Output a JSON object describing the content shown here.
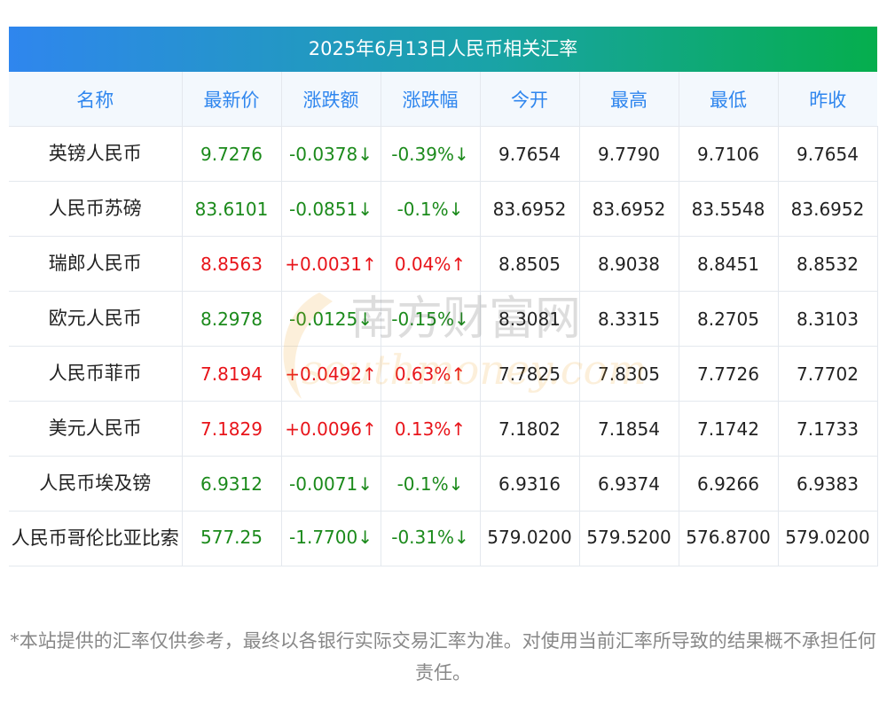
{
  "title": "2025年6月13日人民币相关汇率",
  "headers": [
    "名称",
    "最新价",
    "涨跌额",
    "涨跌幅",
    "今开",
    "最高",
    "最低",
    "昨收"
  ],
  "rows": [
    {
      "name": "英镑人民币",
      "latest": "9.7276",
      "change": "-0.0378↓",
      "pct": "-0.39%↓",
      "open": "9.7654",
      "high": "9.7790",
      "low": "9.7106",
      "prev": "9.7654",
      "trend": "down"
    },
    {
      "name": "人民币苏磅",
      "latest": "83.6101",
      "change": "-0.0851↓",
      "pct": "-0.1%↓",
      "open": "83.6952",
      "high": "83.6952",
      "low": "83.5548",
      "prev": "83.6952",
      "trend": "down"
    },
    {
      "name": "瑞郎人民币",
      "latest": "8.8563",
      "change": "+0.0031↑",
      "pct": "0.04%↑",
      "open": "8.8505",
      "high": "8.9038",
      "low": "8.8451",
      "prev": "8.8532",
      "trend": "up"
    },
    {
      "name": "欧元人民币",
      "latest": "8.2978",
      "change": "-0.0125↓",
      "pct": "-0.15%↓",
      "open": "8.3081",
      "high": "8.3315",
      "low": "8.2705",
      "prev": "8.3103",
      "trend": "down"
    },
    {
      "name": "人民币菲币",
      "latest": "7.8194",
      "change": "+0.0492↑",
      "pct": "0.63%↑",
      "open": "7.7825",
      "high": "7.8305",
      "low": "7.7726",
      "prev": "7.7702",
      "trend": "up"
    },
    {
      "name": "美元人民币",
      "latest": "7.1829",
      "change": "+0.0096↑",
      "pct": "0.13%↑",
      "open": "7.1802",
      "high": "7.1854",
      "low": "7.1742",
      "prev": "7.1733",
      "trend": "up"
    },
    {
      "name": "人民币埃及镑",
      "latest": "6.9312",
      "change": "-0.0071↓",
      "pct": "-0.1%↓",
      "open": "6.9316",
      "high": "6.9374",
      "low": "6.9266",
      "prev": "6.9383",
      "trend": "down"
    },
    {
      "name": "人民币哥伦比亚比索",
      "latest": "577.25",
      "change": "-1.7700↓",
      "pct": "-0.31%↓",
      "open": "579.0200",
      "high": "579.5200",
      "low": "576.8700",
      "prev": "579.0200",
      "trend": "down"
    }
  ],
  "footnote": "*本站提供的汇率仅供参考，最终以各银行实际交易汇率为准。对使用当前汇率所导致的结果概不承担任何责任。",
  "colors": {
    "up": "#e8141a",
    "down": "#1b8a1b",
    "header_text": "#2f86ee",
    "title_gradient_start": "#2f86ee",
    "title_gradient_end": "#05ae4d"
  },
  "watermark": {
    "cn": "南方财富网",
    "en": "southmoney.com"
  }
}
